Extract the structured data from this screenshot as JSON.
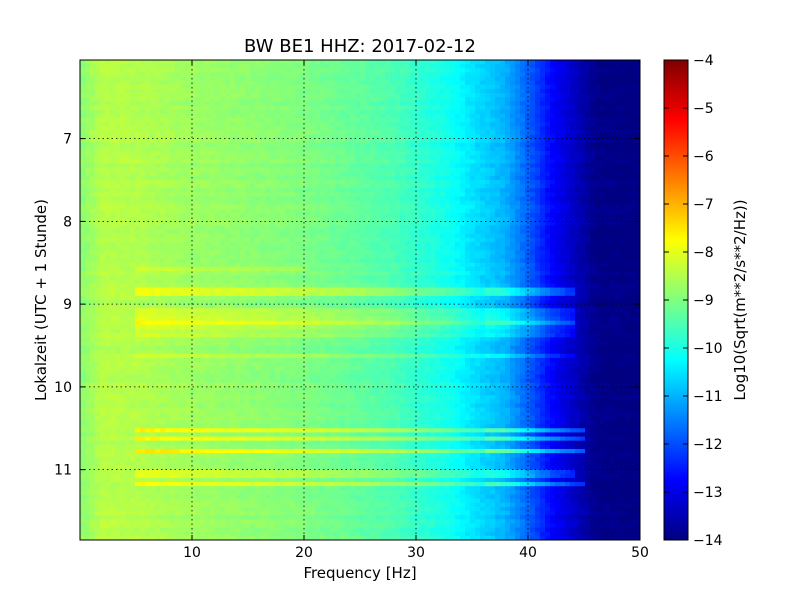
{
  "chart_data": {
    "type": "heatmap",
    "title": "BW BE1 HHZ: 2017-02-12",
    "xlabel": "Frequency [Hz]",
    "ylabel": "Lokalzeit (UTC + 1 Stunde)",
    "xlim": [
      0,
      50
    ],
    "ylim": [
      6.05,
      11.85
    ],
    "y_axis_inverted": true,
    "xticks": [
      10,
      20,
      30,
      40,
      50
    ],
    "yticks": [
      7,
      8,
      9,
      10,
      11
    ],
    "grid": true,
    "colormap": "jet",
    "colorbar": {
      "label": "Log10(Sqrt(m**2/s**2/Hz))",
      "range": [
        -14,
        -4
      ],
      "ticks": [
        -4,
        -5,
        -6,
        -7,
        -8,
        -9,
        -10,
        -11,
        -12,
        -13,
        -14
      ]
    },
    "background_spectrum": {
      "frequency_hz": [
        0,
        2,
        5,
        10,
        15,
        20,
        25,
        28,
        30,
        33,
        35,
        38,
        40,
        42,
        44,
        46,
        50
      ],
      "log10_amplitude": [
        -8.9,
        -8.45,
        -8.5,
        -8.7,
        -8.85,
        -9.0,
        -9.3,
        -9.5,
        -9.75,
        -10.1,
        -10.5,
        -11.0,
        -11.8,
        -12.7,
        -13.3,
        -13.9,
        -14.0
      ]
    },
    "noise_bands": [
      {
        "time": 8.58,
        "fmin": 5,
        "fmax": 20,
        "delta_log10": 0.35
      },
      {
        "time": 8.84,
        "fmin": 5,
        "fmax": 44,
        "delta_log10": 0.6
      },
      {
        "time": 9.1,
        "fmin": 5,
        "fmax": 44,
        "delta_log10": 0.4
      },
      {
        "time": 9.2,
        "fmin": 5,
        "fmax": 44,
        "delta_log10": 0.45
      },
      {
        "time": 9.25,
        "fmin": 5,
        "fmax": 44,
        "delta_log10": 0.35
      },
      {
        "time": 9.35,
        "fmin": 5,
        "fmax": 44,
        "delta_log10": 0.3
      },
      {
        "time": 9.62,
        "fmin": 5,
        "fmax": 44,
        "delta_log10": 0.3
      },
      {
        "time": 10.52,
        "fmin": 5,
        "fmax": 45,
        "delta_log10": 0.9
      },
      {
        "time": 10.63,
        "fmin": 5,
        "fmax": 45,
        "delta_log10": 0.8
      },
      {
        "time": 10.78,
        "fmin": 5,
        "fmax": 45,
        "delta_log10": 1.0
      },
      {
        "time": 11.05,
        "fmin": 5,
        "fmax": 44,
        "delta_log10": 0.5
      },
      {
        "time": 11.18,
        "fmin": 5,
        "fmax": 45,
        "delta_log10": 0.8
      }
    ]
  }
}
